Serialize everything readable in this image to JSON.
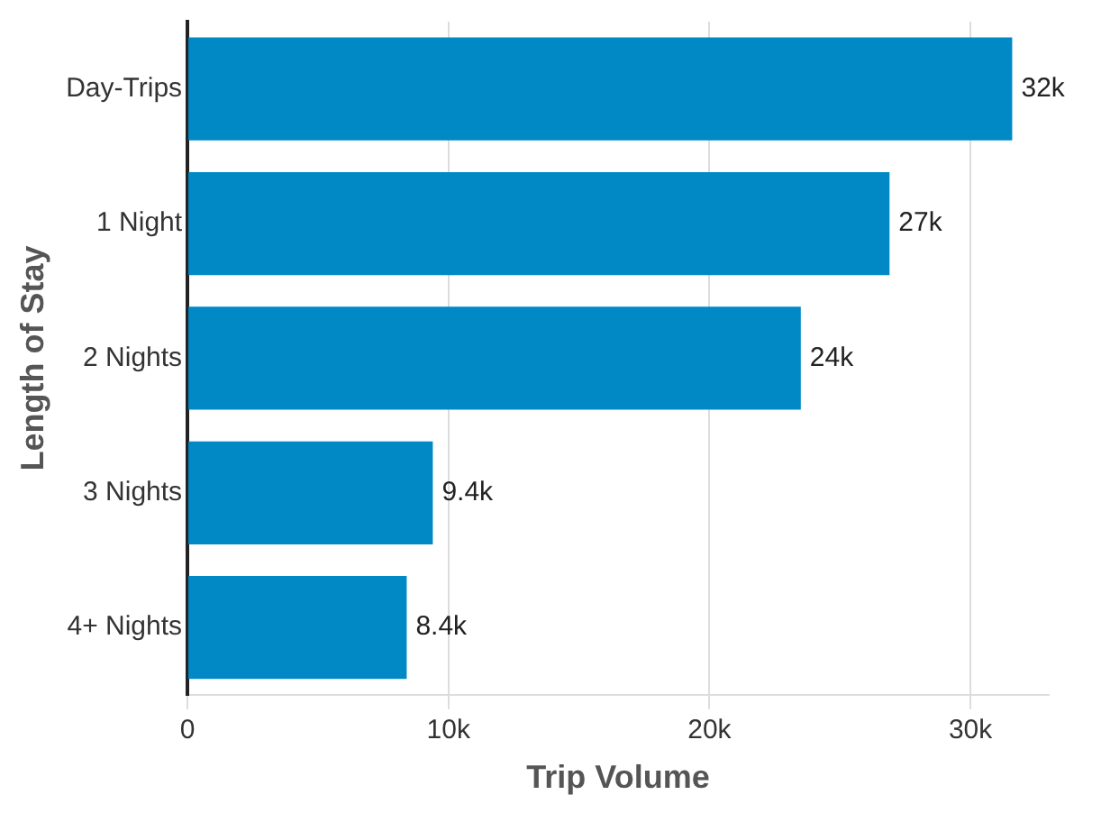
{
  "chart_data": {
    "type": "bar",
    "orientation": "horizontal",
    "xlabel": "Trip Volume",
    "ylabel": "Length of Stay",
    "categories": [
      "Day-Trips",
      "1 Night",
      "2 Nights",
      "3 Nights",
      "4+ Nights"
    ],
    "values": [
      31600,
      26900,
      23500,
      9400,
      8400
    ],
    "value_labels": [
      "32k",
      "27k",
      "24k",
      "9.4k",
      "8.4k"
    ],
    "color": "#0089c4",
    "xlim": [
      0,
      33000
    ],
    "xticks": [
      0,
      {
        "value": 10000,
        "label": "10k"
      },
      {
        "value": 20000,
        "label": "20k"
      },
      {
        "value": 30000,
        "label": "30k"
      }
    ],
    "grid": "x",
    "legend": false
  }
}
